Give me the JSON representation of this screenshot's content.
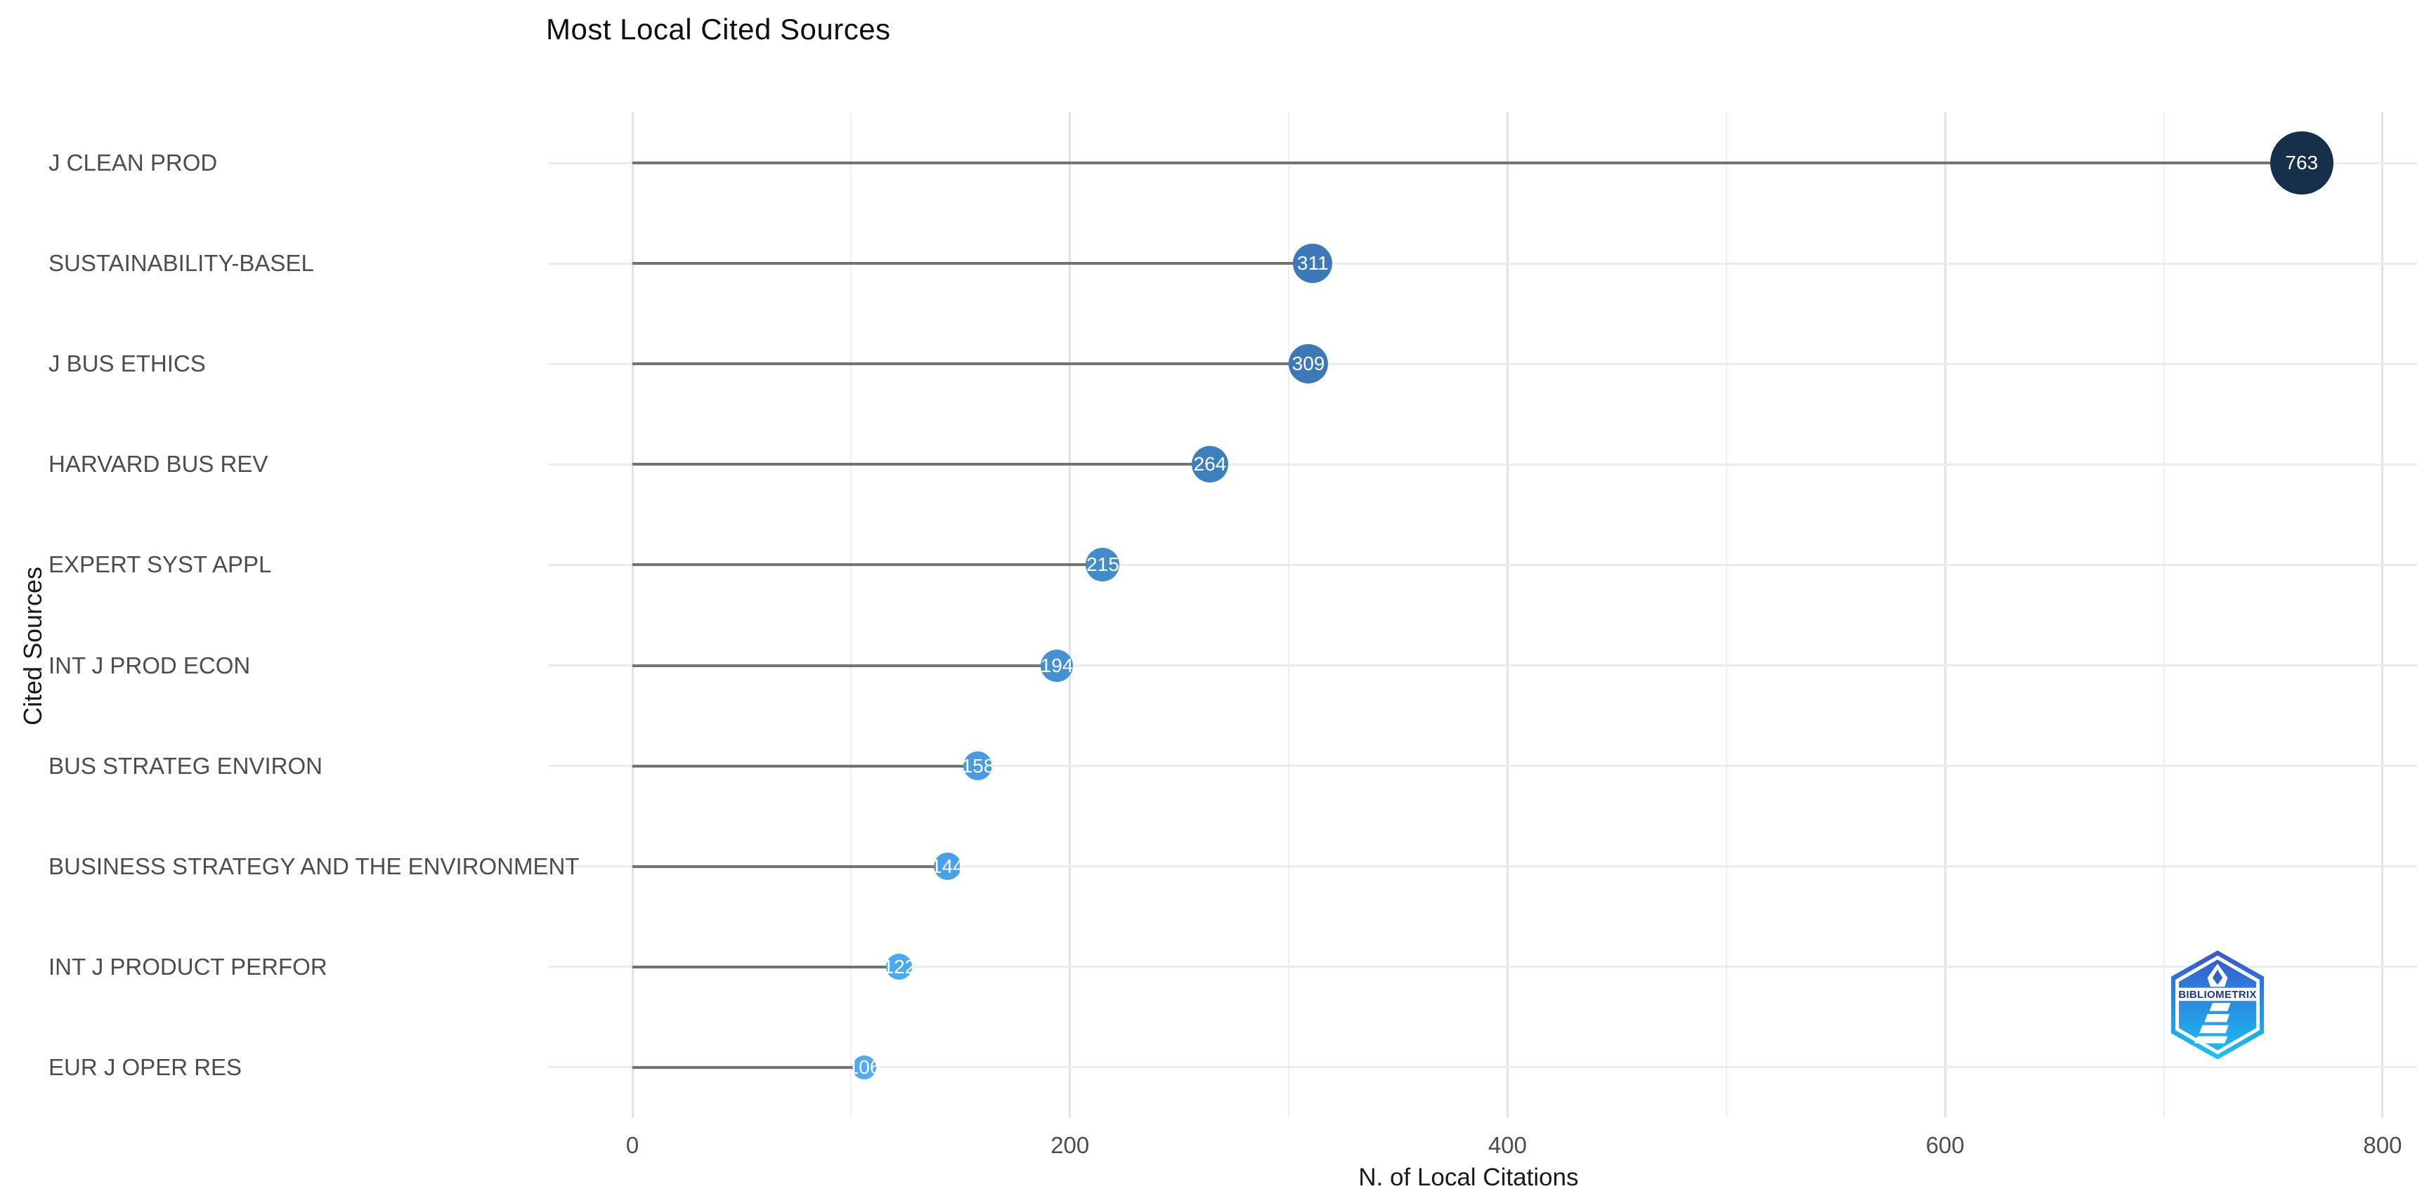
{
  "chart_data": {
    "type": "lollipop",
    "title": "Most Local Cited Sources",
    "xlabel": "N. of Local Citations",
    "ylabel": "Cited Sources",
    "categories": [
      "J CLEAN PROD",
      "SUSTAINABILITY-BASEL",
      "J BUS ETHICS",
      "HARVARD BUS REV",
      "EXPERT SYST APPL",
      "INT J PROD ECON",
      "BUS STRATEG ENVIRON",
      "BUSINESS STRATEGY AND THE ENVIRONMENT",
      "INT J PRODUCT PERFOR",
      "EUR J OPER RES"
    ],
    "values": [
      763,
      311,
      309,
      264,
      215,
      194,
      158,
      144,
      122,
      106
    ],
    "dot_colors": [
      "#16304b",
      "#3b7ab7",
      "#3b7ab7",
      "#3d80bf",
      "#428ccd",
      "#4490d3",
      "#479ce2",
      "#48a0e7",
      "#4ca9f0",
      "#4fabf3"
    ],
    "dot_diameters": [
      90,
      56,
      56,
      52,
      48,
      46,
      41,
      39,
      37,
      34
    ],
    "x_ticks": [
      0,
      200,
      400,
      600,
      800
    ],
    "x_minor_ticks": [
      100,
      300,
      500,
      700
    ],
    "xlim": [
      0,
      800
    ],
    "grid": true,
    "legend_position": "none",
    "stem_color": "#737373",
    "row_line_color": "#ebebeb",
    "major_grid_color": "#e3e3e3",
    "minor_grid_color": "#efefef",
    "axis_text_color": "#4d4d4d",
    "title_color": "#0f0f0f",
    "value_text_color": "#ffffff"
  },
  "logo": {
    "label": "BIBLIOMETRIX",
    "gradient_top": "#3b55c9",
    "gradient_bottom": "#17c5f6",
    "band_text_color": "#1b3a8f"
  }
}
